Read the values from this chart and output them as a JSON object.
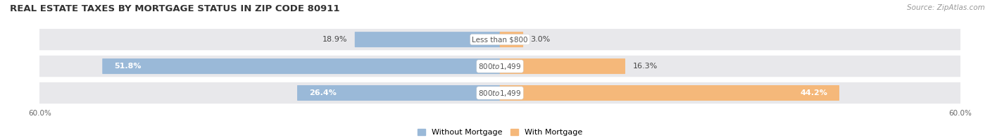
{
  "title": "REAL ESTATE TAXES BY MORTGAGE STATUS IN ZIP CODE 80911",
  "source": "Source: ZipAtlas.com",
  "categories": [
    "Less than $800",
    "$800 to $1,499",
    "$800 to $1,499"
  ],
  "without_mortgage": [
    18.9,
    51.8,
    26.4
  ],
  "with_mortgage": [
    3.0,
    16.3,
    44.2
  ],
  "without_mortgage_label": "Without Mortgage",
  "with_mortgage_label": "With Mortgage",
  "color_without": "#9ab9d8",
  "color_with": "#f5b87a",
  "xlim": 60.0,
  "background_row": "#e8e8eb",
  "background_fig": "#ffffff",
  "title_fontsize": 9.5,
  "bar_label_fontsize": 8.0,
  "category_fontsize": 7.5,
  "axis_fontsize": 7.5,
  "source_fontsize": 7.5,
  "legend_fontsize": 8.0
}
